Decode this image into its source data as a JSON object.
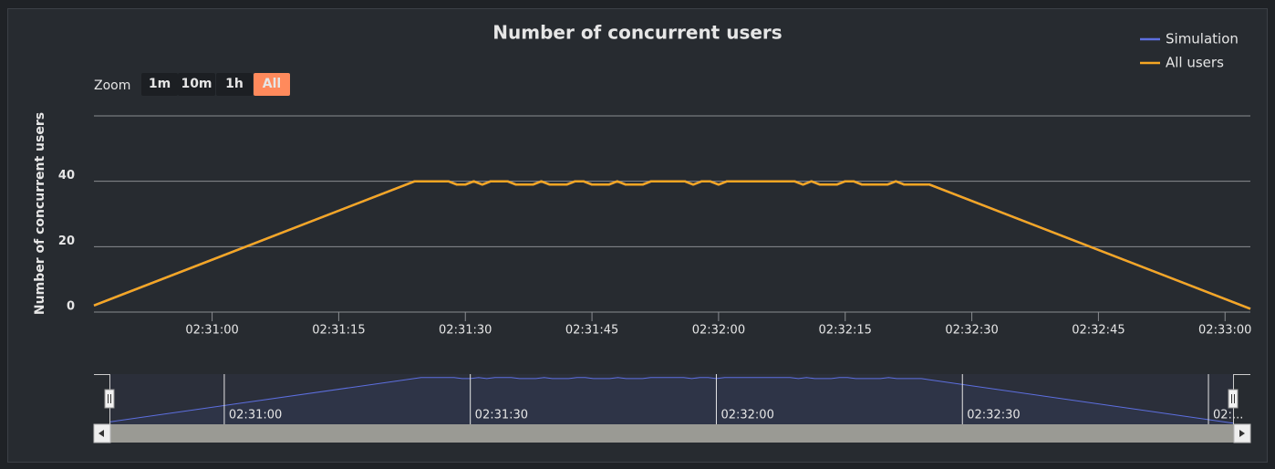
{
  "chart_data": {
    "type": "line",
    "title": "Number of concurrent users",
    "y_label": "Number of concurrent users",
    "zoom_label": "Zoom",
    "zoom_buttons": [
      "1m",
      "10m",
      "1h",
      "All"
    ],
    "zoom_selected": "All",
    "legend_position": "top-right",
    "grid": true,
    "x": [
      "02:30:46",
      "02:31:24",
      "02:31:25",
      "02:31:26",
      "02:31:27",
      "02:31:28",
      "02:31:29",
      "02:31:30",
      "02:31:31",
      "02:31:32",
      "02:31:33",
      "02:31:34",
      "02:31:35",
      "02:31:36",
      "02:31:37",
      "02:31:38",
      "02:31:39",
      "02:31:40",
      "02:31:41",
      "02:31:42",
      "02:31:43",
      "02:31:44",
      "02:31:45",
      "02:31:46",
      "02:31:47",
      "02:31:48",
      "02:31:49",
      "02:31:50",
      "02:31:51",
      "02:31:52",
      "02:31:53",
      "02:31:54",
      "02:31:55",
      "02:31:56",
      "02:31:57",
      "02:31:58",
      "02:31:59",
      "02:32:00",
      "02:32:01",
      "02:32:02",
      "02:32:03",
      "02:32:04",
      "02:32:05",
      "02:32:06",
      "02:32:07",
      "02:32:08",
      "02:32:09",
      "02:32:10",
      "02:32:11",
      "02:32:12",
      "02:32:13",
      "02:32:14",
      "02:32:15",
      "02:32:16",
      "02:32:17",
      "02:32:18",
      "02:32:19",
      "02:32:20",
      "02:32:21",
      "02:32:22",
      "02:32:23",
      "02:32:24",
      "02:32:25",
      "02:33:03"
    ],
    "series": [
      {
        "name": "Simulation",
        "color": "#5d6fe0",
        "values": [
          2,
          40,
          40,
          40,
          40,
          40,
          39,
          39,
          40,
          39,
          40,
          40,
          40,
          39,
          39,
          39,
          40,
          39,
          39,
          39,
          40,
          40,
          39,
          39,
          39,
          40,
          39,
          39,
          39,
          40,
          40,
          40,
          40,
          40,
          39,
          40,
          40,
          39,
          40,
          40,
          40,
          40,
          40,
          40,
          40,
          40,
          40,
          39,
          40,
          39,
          39,
          39,
          40,
          40,
          39,
          39,
          39,
          39,
          40,
          39,
          39,
          39,
          39,
          1
        ]
      },
      {
        "name": "All users",
        "color": "#f5a623",
        "values": [
          2,
          40,
          40,
          40,
          40,
          40,
          39,
          39,
          40,
          39,
          40,
          40,
          40,
          39,
          39,
          39,
          40,
          39,
          39,
          39,
          40,
          40,
          39,
          39,
          39,
          40,
          39,
          39,
          39,
          40,
          40,
          40,
          40,
          40,
          39,
          40,
          40,
          39,
          40,
          40,
          40,
          40,
          40,
          40,
          40,
          40,
          40,
          39,
          40,
          39,
          39,
          39,
          40,
          40,
          39,
          39,
          39,
          39,
          40,
          39,
          39,
          39,
          39,
          1
        ]
      }
    ],
    "xlim": [
      "02:30:46",
      "02:33:03"
    ],
    "xticks": [
      "02:31:00",
      "02:31:15",
      "02:31:30",
      "02:31:45",
      "02:32:00",
      "02:32:15",
      "02:32:30",
      "02:32:45",
      "02:33:00"
    ],
    "ylim": [
      0,
      60
    ],
    "yticks": [
      0,
      20,
      40
    ],
    "navigator_xticks": [
      "02:31:00",
      "02:31:30",
      "02:32:00",
      "02:32:30",
      {
        "value": "02:33:00",
        "label": "02:..."
      }
    ]
  }
}
